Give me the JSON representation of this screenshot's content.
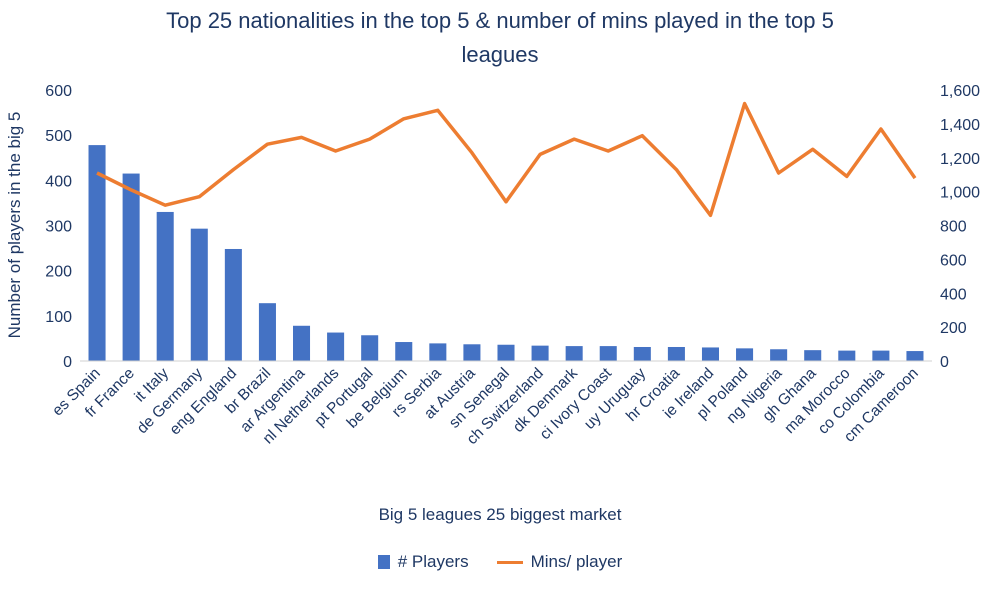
{
  "chart_data": {
    "type": "bar+line",
    "title": "Top 25 nationalities in the top 5 & number of mins played in the top 5\nleagues",
    "xlabel": "Big 5 leagues 25 biggest market",
    "ylabel": "Number of players in the big 5",
    "y2label": "",
    "categories": [
      "es Spain",
      "fr France",
      "it Italy",
      "de Germany",
      "eng England",
      "br Brazil",
      "ar Argentina",
      "nl Netherlands",
      "pt Portugal",
      "be Belgium",
      "rs Serbia",
      "at Austria",
      "sn Senegal",
      "ch Switzerland",
      "dk Denmark",
      "ci Ivory Coast",
      "uy Uruguay",
      "hr Croatia",
      "ie Ireland",
      "pl Poland",
      "ng Nigeria",
      "gh Ghana",
      "ma Morocco",
      "co Colombia",
      "cm Cameroon"
    ],
    "series": [
      {
        "name": "# Players",
        "type": "bar",
        "axis": "left",
        "color": "#4472c4",
        "values": [
          478,
          415,
          330,
          293,
          248,
          128,
          78,
          63,
          57,
          42,
          39,
          37,
          36,
          34,
          33,
          33,
          31,
          31,
          30,
          28,
          26,
          24,
          23,
          23,
          22
        ]
      },
      {
        "name": "Mins/ player",
        "type": "line",
        "axis": "right",
        "color": "#ed7d31",
        "values": [
          1110,
          1010,
          920,
          970,
          1130,
          1280,
          1320,
          1240,
          1310,
          1430,
          1480,
          1230,
          940,
          1220,
          1310,
          1240,
          1330,
          1130,
          860,
          1520,
          1110,
          1250,
          1090,
          1370,
          1080
        ]
      }
    ],
    "ylim": [
      0,
      600
    ],
    "yticks": [
      "0",
      "100",
      "200",
      "300",
      "400",
      "500",
      "600"
    ],
    "y2lim": [
      0,
      1600
    ],
    "y2ticks": [
      "0",
      "200",
      "400",
      "600",
      "800",
      "1,000",
      "1,200",
      "1,400",
      "1,600"
    ],
    "grid": false,
    "legend_position": "bottom"
  },
  "legend": {
    "bar_label": "# Players",
    "line_label": "Mins/ player"
  }
}
